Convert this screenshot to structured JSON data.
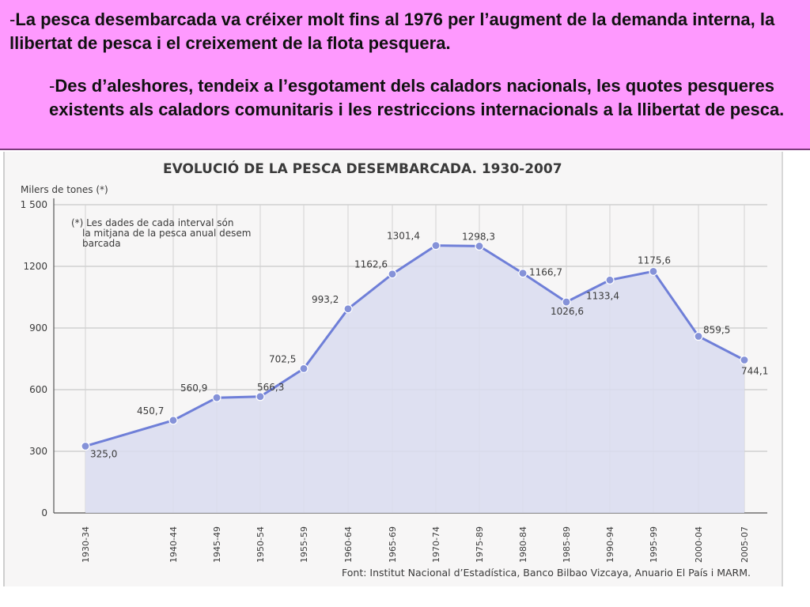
{
  "paragraphs": {
    "p1_dash": "-",
    "p1_text": "La pesca desembarcada va créixer molt fins al 1976 per l’augment de la demanda interna, la llibertat de pesca i el creixement de la flota pesquera.",
    "p2_dash": "-",
    "p2_text": "Des d’aleshores, tendeix a l’esgotament dels caladors nacionals, les quotes pesqueres existents als caladors comunitaris i les restriccions internacionals a la llibertat de pesca."
  },
  "colors": {
    "panel_bg": "#fe99fe",
    "fill": "#d9dcf0",
    "line": "#6f7fd8",
    "marker": "#8592d8"
  },
  "chart_data": {
    "type": "area",
    "title": "EVOLUCIÓ DE LA PESCA DESEMBARCADA. 1930-2007",
    "ylabel": "Milers de tones (*)",
    "xlabel": "",
    "note": "(*) Les dades de cada interval són la mitjana de la pesca anual desembarcada",
    "source": "Font: Institut Nacional d’Estadística, Banco Bilbao Vizcaya, Anuario El País i MARM.",
    "ylim": [
      0,
      1500
    ],
    "yticks": [
      0,
      300,
      600,
      900,
      1200,
      1500
    ],
    "ytick_labels": [
      "0",
      "300",
      "600",
      "900",
      "1200",
      "1 500"
    ],
    "grid": true,
    "categories": [
      "1930-34",
      "1940-44",
      "1945-49",
      "1950-54",
      "1955-59",
      "1960-64",
      "1965-69",
      "1970-74",
      "1975-89",
      "1980-84",
      "1985-89",
      "1990-94",
      "1995-99",
      "2000-04",
      "2005-07"
    ],
    "values": [
      325.0,
      450.7,
      560.9,
      566.3,
      702.5,
      993.2,
      1162.6,
      1301.4,
      1298.3,
      1166.7,
      1026.6,
      1133.4,
      1175.6,
      859.5,
      744.1
    ],
    "value_labels": [
      "325,0",
      "450,7",
      "560,9",
      "566,3",
      "702,5",
      "993,2",
      "1162,6",
      "1301,4",
      "1298,3",
      "1166,7",
      "1026,6",
      "1133,4",
      "1175,6",
      "859,5",
      "744,1"
    ]
  }
}
